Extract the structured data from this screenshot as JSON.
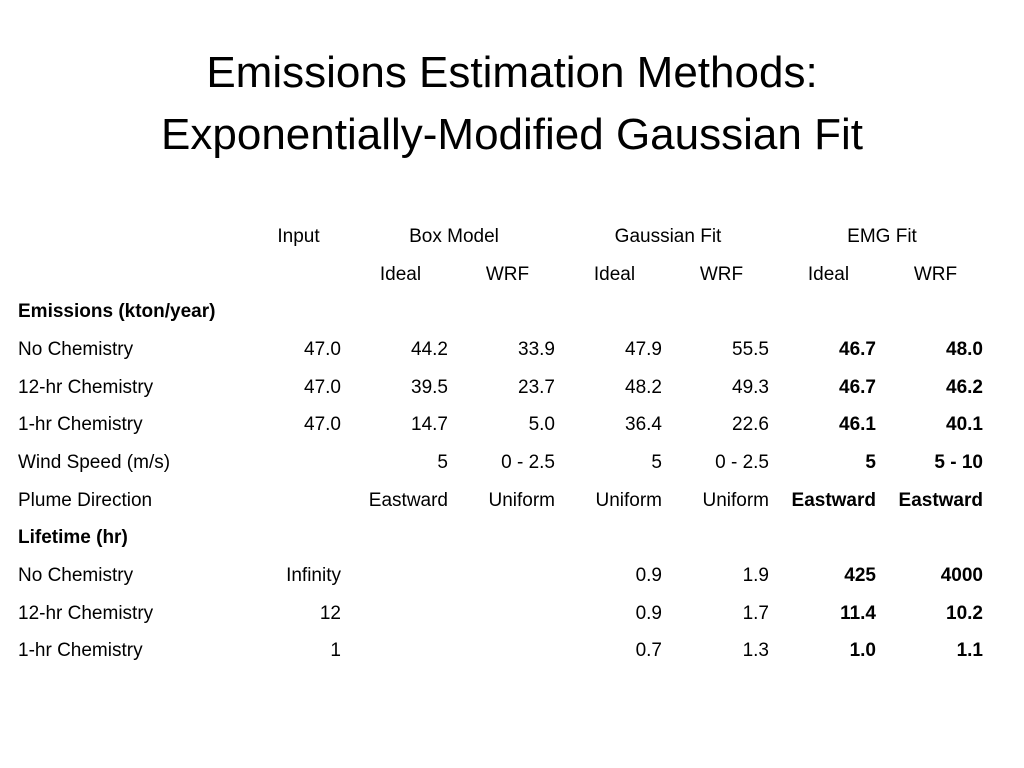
{
  "title": {
    "line1": "Emissions Estimation Methods:",
    "line2": "Exponentially-Modified Gaussian Fit"
  },
  "table": {
    "group_headers": {
      "input": "Input",
      "box_model": "Box Model",
      "gaussian_fit": "Gaussian Fit",
      "emg_fit": "EMG Fit"
    },
    "sub_headers": [
      "Ideal",
      "WRF",
      "Ideal",
      "WRF",
      "Ideal",
      "WRF"
    ],
    "sections": {
      "emissions": "Emissions (kton/year)",
      "lifetime": "Lifetime (hr)"
    },
    "emissions_rows": [
      {
        "label": "No Chemistry",
        "input": "47.0",
        "box_ideal": "44.2",
        "box_wrf": "33.9",
        "gauss_ideal": "47.9",
        "gauss_wrf": "55.5",
        "emg_ideal": "46.7",
        "emg_wrf": "48.0"
      },
      {
        "label": "12-hr Chemistry",
        "input": "47.0",
        "box_ideal": "39.5",
        "box_wrf": "23.7",
        "gauss_ideal": "48.2",
        "gauss_wrf": "49.3",
        "emg_ideal": "46.7",
        "emg_wrf": "46.2"
      },
      {
        "label": "1-hr Chemistry",
        "input": "47.0",
        "box_ideal": "14.7",
        "box_wrf": "5.0",
        "gauss_ideal": "36.4",
        "gauss_wrf": "22.6",
        "emg_ideal": "46.1",
        "emg_wrf": "40.1"
      },
      {
        "label": "Wind Speed (m/s)",
        "input": "",
        "box_ideal": "5",
        "box_wrf": "0 - 2.5",
        "gauss_ideal": "5",
        "gauss_wrf": "0 - 2.5",
        "emg_ideal": "5",
        "emg_wrf": "5 - 10"
      },
      {
        "label": "Plume Direction",
        "input": "",
        "box_ideal": "Eastward",
        "box_wrf": "Uniform",
        "gauss_ideal": "Uniform",
        "gauss_wrf": "Uniform",
        "emg_ideal": "Eastward",
        "emg_wrf": "Eastward"
      }
    ],
    "lifetime_rows": [
      {
        "label": "No Chemistry",
        "input": "Infinity",
        "box_ideal": "",
        "box_wrf": "",
        "gauss_ideal": "0.9",
        "gauss_wrf": "1.9",
        "emg_ideal": "425",
        "emg_wrf": "4000"
      },
      {
        "label": "12-hr Chemistry",
        "input": "12",
        "box_ideal": "",
        "box_wrf": "",
        "gauss_ideal": "0.9",
        "gauss_wrf": "1.7",
        "emg_ideal": "11.4",
        "emg_wrf": "10.2"
      },
      {
        "label": "1-hr Chemistry",
        "input": "1",
        "box_ideal": "",
        "box_wrf": "",
        "gauss_ideal": "0.7",
        "gauss_wrf": "1.3",
        "emg_ideal": "1.0",
        "emg_wrf": "1.1"
      }
    ]
  }
}
